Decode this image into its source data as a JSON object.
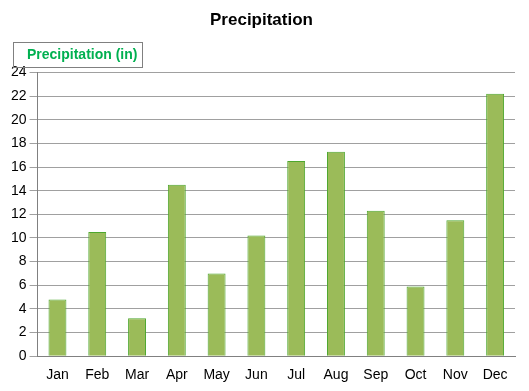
{
  "chart_data": {
    "type": "bar",
    "title": "Precipitation",
    "categories": [
      "Jan",
      "Feb",
      "Mar",
      "Apr",
      "May",
      "Jun",
      "Jul",
      "Aug",
      "Sep",
      "Oct",
      "Nov",
      "Dec"
    ],
    "series": [
      {
        "name": "Precipitation (in)",
        "color": "#9bbb59",
        "values": [
          4.8,
          10.5,
          3.2,
          14.5,
          7.0,
          10.2,
          16.5,
          17.3,
          12.3,
          5.9,
          11.5,
          22.2
        ]
      }
    ],
    "ylim": [
      0,
      24
    ],
    "yticks": [
      0,
      2,
      4,
      6,
      8,
      10,
      12,
      14,
      16,
      18,
      20,
      22,
      24
    ],
    "grid": true,
    "legend": "top left"
  }
}
